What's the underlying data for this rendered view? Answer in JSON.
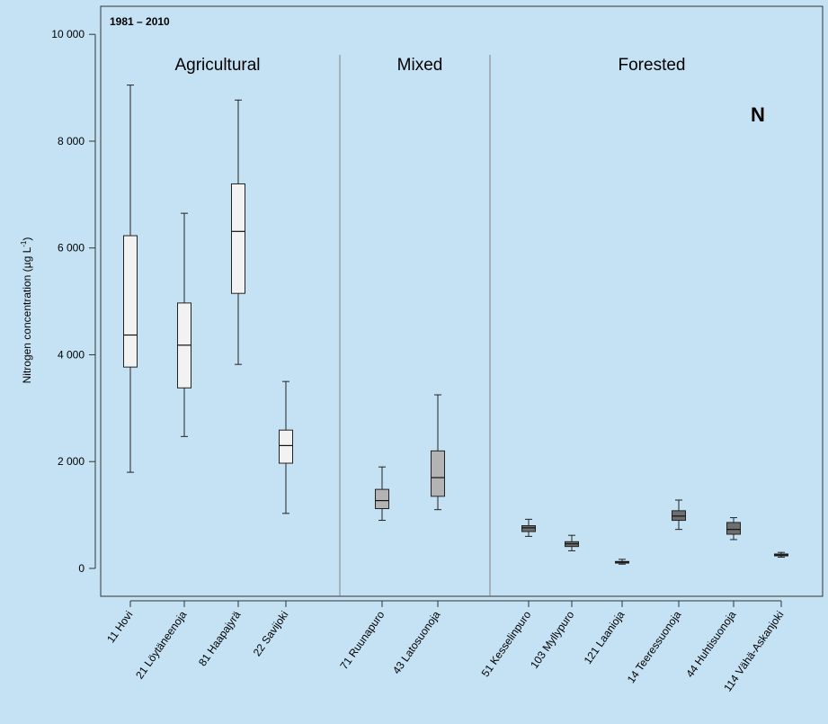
{
  "chart_data": {
    "type": "boxplot",
    "period_label": "1981 – 2010",
    "panel_letter": "N",
    "ylabel": "Nitrogen concentration (µg L⁻¹)",
    "ylabel_parts": {
      "main": "Nitrogen concentration (µg L",
      "sup": "-1",
      "close": ")"
    },
    "ylim": [
      -500,
      10000
    ],
    "yticks": [
      {
        "value": 0,
        "label": "0"
      },
      {
        "value": 2000,
        "label": "2 000"
      },
      {
        "value": 4000,
        "label": "4 000"
      },
      {
        "value": 6000,
        "label": "6 000"
      },
      {
        "value": 8000,
        "label": "8 000"
      },
      {
        "value": 10000,
        "label": "10 000"
      }
    ],
    "groups": [
      {
        "label": "Agricultural",
        "fill": "#f2f2f2"
      },
      {
        "label": "Mixed",
        "fill": "#b3b3b3"
      },
      {
        "label": "Forested",
        "fill": "#6e6e6e"
      }
    ],
    "boxes": [
      {
        "label": "11 Hovi",
        "group": 0,
        "min": 1800,
        "q1": 3770,
        "median": 4370,
        "q3": 6230,
        "max": 9050
      },
      {
        "label": "21 Löytäneenoja",
        "group": 0,
        "min": 2470,
        "q1": 3380,
        "median": 4180,
        "q3": 4970,
        "max": 6650
      },
      {
        "label": "81 Haapajyrä",
        "group": 0,
        "min": 3820,
        "q1": 5150,
        "median": 6310,
        "q3": 7200,
        "max": 8770
      },
      {
        "label": "22 Savijoki",
        "group": 0,
        "min": 1030,
        "q1": 1970,
        "median": 2300,
        "q3": 2590,
        "max": 3500
      },
      {
        "label": "71 Ruunapuro",
        "group": 1,
        "min": 900,
        "q1": 1120,
        "median": 1270,
        "q3": 1480,
        "max": 1900
      },
      {
        "label": "43 Latosuonoja",
        "group": 1,
        "min": 1100,
        "q1": 1350,
        "median": 1700,
        "q3": 2200,
        "max": 3250
      },
      {
        "label": "51 Kesselinpuro",
        "group": 2,
        "min": 600,
        "q1": 690,
        "median": 760,
        "q3": 800,
        "max": 920
      },
      {
        "label": "103 Myllypuro",
        "group": 2,
        "min": 330,
        "q1": 410,
        "median": 460,
        "q3": 500,
        "max": 620
      },
      {
        "label": "121 Laanioja",
        "group": 2,
        "min": 80,
        "q1": 100,
        "median": 120,
        "q3": 130,
        "max": 170
      },
      {
        "label": "14 Teeressuonoja",
        "group": 2,
        "min": 730,
        "q1": 900,
        "median": 980,
        "q3": 1080,
        "max": 1280
      },
      {
        "label": "44 Huhtisuonoja",
        "group": 2,
        "min": 540,
        "q1": 640,
        "median": 730,
        "q3": 860,
        "max": 950
      },
      {
        "label": "114 Vähä-Askanjoki",
        "group": 2,
        "min": 210,
        "q1": 235,
        "median": 250,
        "q3": 270,
        "max": 300
      }
    ],
    "grid": false,
    "legend": "none"
  }
}
